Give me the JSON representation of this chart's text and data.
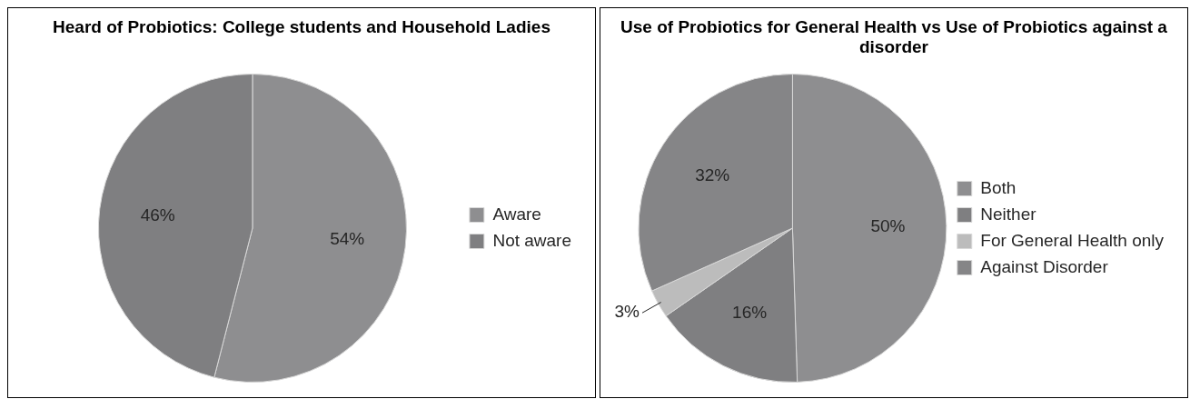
{
  "chart_data": [
    {
      "type": "pie",
      "title": "Heard of Probiotics: College students and Household Ladies",
      "categories": [
        "Aware",
        "Not aware"
      ],
      "values": [
        54,
        46
      ],
      "value_labels": [
        "54%",
        "46%"
      ],
      "colors": [
        "#8e8e90",
        "#7f7f81"
      ],
      "legend": "right"
    },
    {
      "type": "pie",
      "title": "Use of Probiotics for General Health vs Use of Probiotics against a disorder",
      "categories": [
        "Both",
        "Neither",
        "For General Health only",
        "Against Disorder"
      ],
      "values": [
        50,
        16,
        3,
        32
      ],
      "value_labels": [
        "50%",
        "16%",
        "3%",
        "32%"
      ],
      "colors": [
        "#8e8e90",
        "#7f7f81",
        "#bcbcbc",
        "#858587"
      ],
      "legend": "right"
    }
  ]
}
